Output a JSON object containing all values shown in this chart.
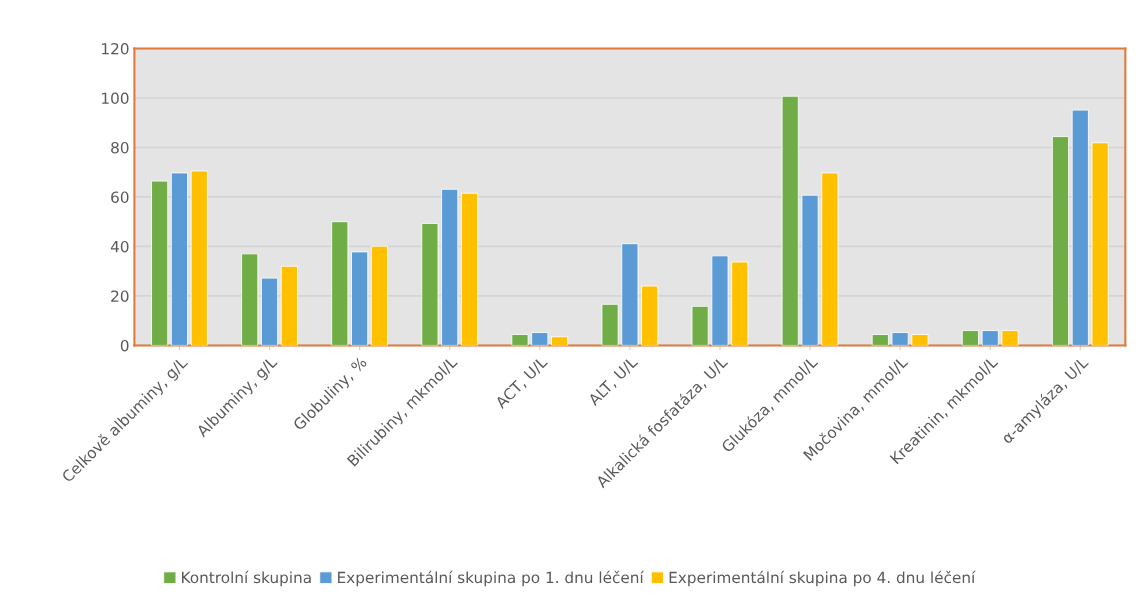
{
  "chart_data": {
    "type": "bar",
    "categories": [
      "Celkově albuminy, g/L",
      "Albuminy, g/L",
      "Globuliny, %",
      "Bilirubiny, mkmol/L",
      "ACT, U/L",
      "ALT, U/L",
      "Alkalická fosfatáza, U/L",
      "Glukóza, mmol/L",
      "Močovina, mmol/L",
      "Kreatinin, mkmol/L",
      "α-amyláza, U/L"
    ],
    "series": [
      {
        "name": "Kontrolní skupina",
        "color": "#70ad47",
        "values": [
          66.4,
          37,
          50,
          49.3,
          4.4,
          16.6,
          15.8,
          100.7,
          4.4,
          6,
          84.4
        ]
      },
      {
        "name": "Experimentální skupina po 1. dnu léčení",
        "color": "#5b9bd5",
        "values": [
          69.7,
          27.2,
          37.8,
          63.1,
          5.2,
          41.1,
          36.2,
          60.7,
          5.2,
          6,
          95.1
        ]
      },
      {
        "name": "Experimentální skupina po 4. dnu léčení",
        "color": "#ffc000",
        "values": [
          70.5,
          32,
          40.1,
          61.5,
          3.5,
          24,
          33.7,
          69.7,
          4.4,
          6,
          81.9
        ]
      }
    ],
    "ylim": [
      0,
      120
    ],
    "yticks": [
      0,
      20,
      40,
      60,
      80,
      100,
      120
    ],
    "grid": "y",
    "legend": "bottom"
  }
}
